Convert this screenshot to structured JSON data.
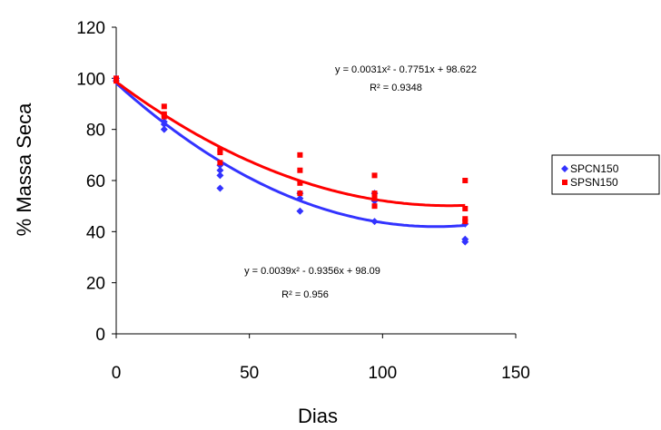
{
  "chart_data": {
    "type": "scatter",
    "xlabel": "Dias",
    "ylabel": "% Massa Seca",
    "xlim": [
      0,
      150
    ],
    "ylim": [
      0,
      120
    ],
    "xticks": [
      "0",
      "50",
      "100",
      "150"
    ],
    "yticks": [
      "0",
      "20",
      "40",
      "60",
      "80",
      "100",
      "120"
    ],
    "grid": false,
    "legend_position": "right",
    "series": [
      {
        "name": "SPCN150",
        "color": "#3333ff",
        "marker": "diamond",
        "points": [
          [
            0,
            100
          ],
          [
            0,
            99
          ],
          [
            18,
            82
          ],
          [
            18,
            80
          ],
          [
            18,
            83
          ],
          [
            39,
            66
          ],
          [
            39,
            62
          ],
          [
            39,
            57
          ],
          [
            39,
            64
          ],
          [
            69,
            55
          ],
          [
            69,
            53
          ],
          [
            69,
            48
          ],
          [
            97,
            55
          ],
          [
            97,
            52
          ],
          [
            97,
            44
          ],
          [
            131,
            43
          ],
          [
            131,
            37
          ],
          [
            131,
            36
          ]
        ],
        "trend": {
          "a": 0.0039,
          "b": -0.9356,
          "c": 98.09
        },
        "equation": "y = 0.0039x² - 0.9356x + 98.09",
        "r2": "R² = 0.956"
      },
      {
        "name": "SPSN150",
        "color": "#ff0000",
        "marker": "square",
        "points": [
          [
            0,
            100
          ],
          [
            0,
            99
          ],
          [
            18,
            89
          ],
          [
            18,
            86
          ],
          [
            18,
            85
          ],
          [
            39,
            72
          ],
          [
            39,
            71
          ],
          [
            39,
            67
          ],
          [
            69,
            70
          ],
          [
            69,
            64
          ],
          [
            69,
            59
          ],
          [
            69,
            55
          ],
          [
            97,
            62
          ],
          [
            97,
            55
          ],
          [
            97,
            53
          ],
          [
            97,
            50
          ],
          [
            131,
            60
          ],
          [
            131,
            49
          ],
          [
            131,
            45
          ],
          [
            131,
            44
          ]
        ],
        "trend": {
          "a": 0.0031,
          "b": -0.7751,
          "c": 98.622
        },
        "equation": "y = 0.0031x² - 0.7751x + 98.622",
        "r2": "R² = 0.9348"
      }
    ]
  }
}
